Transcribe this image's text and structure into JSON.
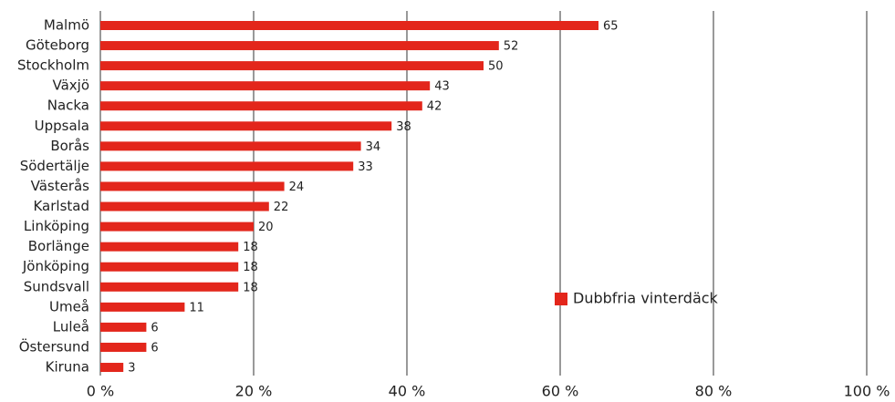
{
  "chart_data": {
    "type": "bar",
    "orientation": "horizontal",
    "categories": [
      "Malmö",
      "Göteborg",
      "Stockholm",
      "Växjö",
      "Nacka",
      "Uppsala",
      "Borås",
      "Södertälje",
      "Västerås",
      "Karlstad",
      "Linköping",
      "Borlänge",
      "Jönköping",
      "Sundsvall",
      "Umeå",
      "Luleå",
      "Östersund",
      "Kiruna"
    ],
    "series": [
      {
        "name": "Dubbfria vinterdäck",
        "color": "#e3261b",
        "values": [
          65,
          52,
          50,
          43,
          42,
          38,
          34,
          33,
          24,
          22,
          20,
          18,
          18,
          18,
          11,
          6,
          6,
          3
        ]
      }
    ],
    "xlim": [
      0,
      100
    ],
    "xticks": [
      {
        "value": 0,
        "label": "0 %"
      },
      {
        "value": 20,
        "label": "20 %"
      },
      {
        "value": 40,
        "label": "40 %"
      },
      {
        "value": 60,
        "label": "60 %"
      },
      {
        "value": 80,
        "label": "80 %"
      },
      {
        "value": 100,
        "label": "100 %"
      }
    ],
    "grid": true,
    "legend": "center-right"
  }
}
